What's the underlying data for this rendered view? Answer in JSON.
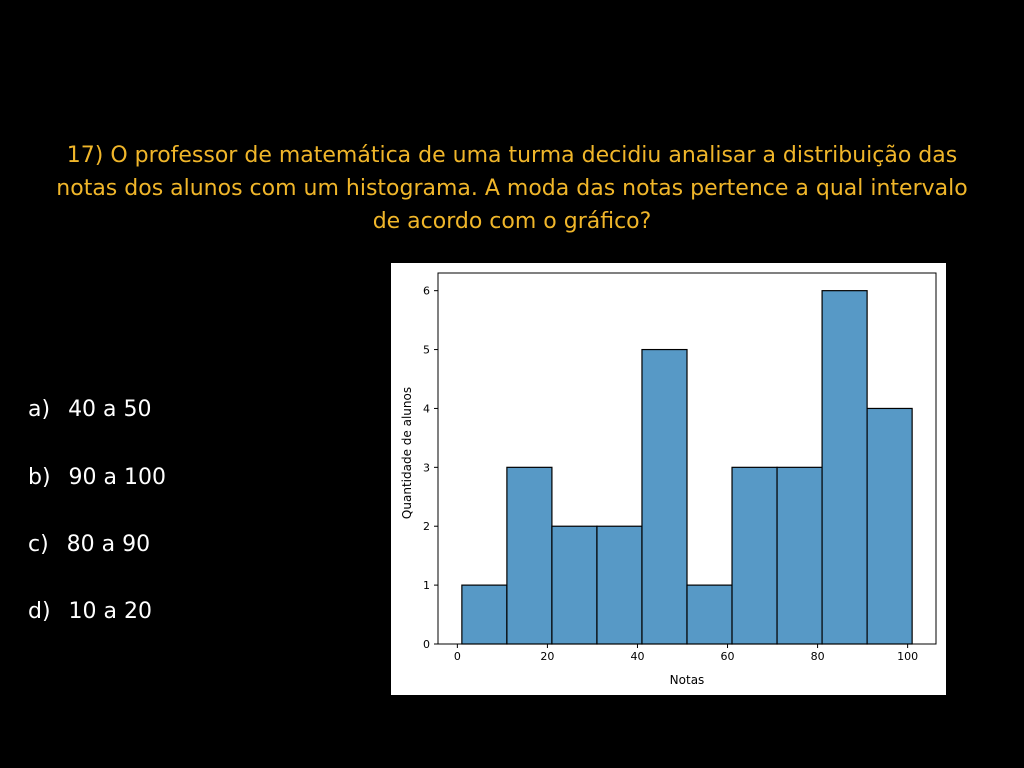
{
  "question": {
    "line1": "17) O professor de matemática de uma turma decidiu analisar a distribuição das",
    "line2": "notas dos alunos com um histograma. A moda das notas pertence a qual intervalo",
    "line3": "de acordo com o gráfico?"
  },
  "options": [
    {
      "letter": "a)",
      "text": "40 a 50"
    },
    {
      "letter": "b)",
      "text": "90 a 100"
    },
    {
      "letter": "c)",
      "text": "80 a 90"
    },
    {
      "letter": "d)",
      "text": "10 a 20"
    }
  ],
  "colors": {
    "question": "#f0b62a",
    "options": "#ffffff",
    "bar_fill": "#5799c6",
    "bar_edge": "#000000",
    "background": "#000000"
  },
  "chart_data": {
    "type": "bar",
    "title": "",
    "xlabel": "Notas",
    "ylabel": "Quantidade de alunos",
    "bins": [
      {
        "x0": 1,
        "x1": 11,
        "value": 1
      },
      {
        "x0": 11,
        "x1": 21,
        "value": 3
      },
      {
        "x0": 21,
        "x1": 31,
        "value": 2
      },
      {
        "x0": 31,
        "x1": 41,
        "value": 2
      },
      {
        "x0": 41,
        "x1": 51,
        "value": 5
      },
      {
        "x0": 51,
        "x1": 61,
        "value": 1
      },
      {
        "x0": 61,
        "x1": 71,
        "value": 3
      },
      {
        "x0": 71,
        "x1": 81,
        "value": 3
      },
      {
        "x0": 81,
        "x1": 91,
        "value": 6
      },
      {
        "x0": 91,
        "x1": 101,
        "value": 4
      }
    ],
    "xticks": [
      0,
      20,
      40,
      60,
      80,
      100
    ],
    "yticks": [
      0,
      1,
      2,
      3,
      4,
      5,
      6
    ],
    "xlim": [
      -4.3,
      106.3
    ],
    "ylim": [
      0,
      6.3
    ],
    "grid": false
  }
}
